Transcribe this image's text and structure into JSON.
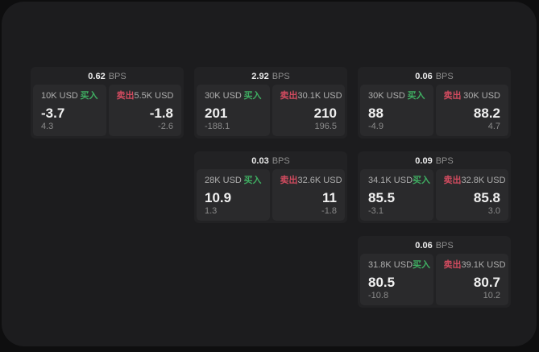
{
  "page": {
    "background": "#0e0e0f",
    "container_background": "#1c1c1e"
  },
  "colors": {
    "buy_green": "#3fae62",
    "sell_red": "#d14b5f",
    "card_bg": "#222224",
    "panel_bg": "#2a2a2c"
  },
  "labels": {
    "bps_unit": "BPS",
    "buy": "买入",
    "sell": "卖出"
  },
  "cards": [
    {
      "col": 1,
      "row": 1,
      "bps": "0.62",
      "buy": {
        "amount": "10K USD",
        "value": "-3.7",
        "delta": "4.3"
      },
      "sell": {
        "amount": "5.5K USD",
        "value": "-1.8",
        "delta": "-2.6"
      }
    },
    {
      "col": 2,
      "row": 1,
      "bps": "2.92",
      "buy": {
        "amount": "30K USD",
        "value": "201",
        "delta": "-188.1"
      },
      "sell": {
        "amount": "30.1K USD",
        "value": "210",
        "delta": "196.5"
      }
    },
    {
      "col": 3,
      "row": 1,
      "bps": "0.06",
      "buy": {
        "amount": "30K USD",
        "value": "88",
        "delta": "-4.9"
      },
      "sell": {
        "amount": "30K USD",
        "value": "88.2",
        "delta": "4.7"
      }
    },
    {
      "col": 2,
      "row": 2,
      "bps": "0.03",
      "buy": {
        "amount": "28K USD",
        "value": "10.9",
        "delta": "1.3"
      },
      "sell": {
        "amount": "32.6K USD",
        "value": "11",
        "delta": "-1.8"
      }
    },
    {
      "col": 3,
      "row": 2,
      "bps": "0.09",
      "buy": {
        "amount": "34.1K USD",
        "value": "85.5",
        "delta": "-3.1"
      },
      "sell": {
        "amount": "32.8K USD",
        "value": "85.8",
        "delta": "3.0"
      }
    },
    {
      "col": 3,
      "row": 3,
      "bps": "0.06",
      "buy": {
        "amount": "31.8K USD",
        "value": "80.5",
        "delta": "-10.8"
      },
      "sell": {
        "amount": "39.1K USD",
        "value": "80.7",
        "delta": "10.2"
      }
    }
  ]
}
